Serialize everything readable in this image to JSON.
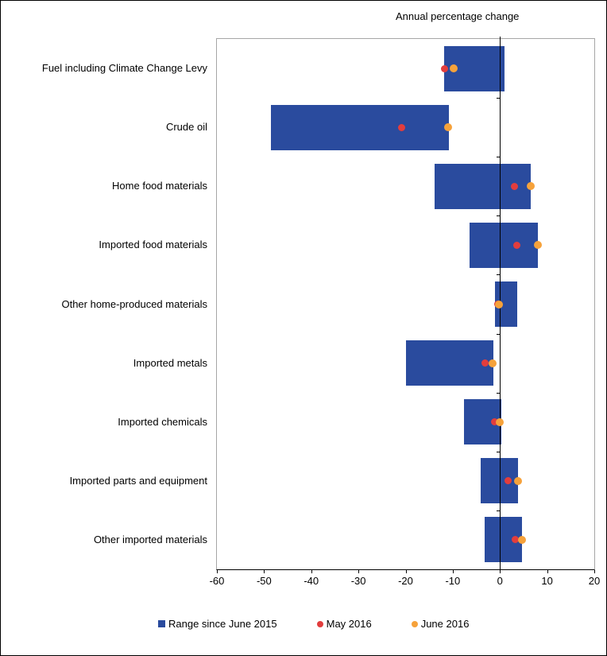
{
  "title": "Annual percentage change",
  "colors": {
    "range_bar": "#2a4b9e",
    "may_point": "#e23d3d",
    "june_point": "#f6a23b",
    "plot_border": "#a6a6a6",
    "axis_line": "#000000"
  },
  "legend": {
    "items": [
      {
        "label": "Range since June 2015",
        "marker": "square",
        "color": "#2a4b9e"
      },
      {
        "label": "May 2016",
        "marker": "circle",
        "color": "#e23d3d"
      },
      {
        "label": "June 2016",
        "marker": "circle",
        "color": "#f6a23b"
      }
    ]
  },
  "chart_data": {
    "type": "bar",
    "subtype": "horizontal-range-bars-with-points",
    "title": "Annual percentage change",
    "categories": [
      "Fuel including Climate Change Levy",
      "Crude oil",
      "Home food materials",
      "Imported food materials",
      "Other home-produced materials",
      "Imported metals",
      "Imported chemicals",
      "Imported parts and equipment",
      "Other imported materials"
    ],
    "series": [
      {
        "name": "Range since June 2015",
        "type": "range",
        "low": [
          -11.8,
          -48.5,
          -13.9,
          -6.4,
          -1.0,
          -19.9,
          -7.7,
          -4.1,
          -3.3
        ],
        "high": [
          1.0,
          -10.8,
          6.6,
          8.1,
          3.7,
          -1.4,
          0.3,
          3.8,
          4.6
        ]
      },
      {
        "name": "May 2016",
        "type": "point",
        "values": [
          -11.8,
          -20.8,
          3.0,
          3.5,
          -0.5,
          -3.1,
          -1.1,
          1.7,
          3.2
        ]
      },
      {
        "name": "June 2016",
        "type": "point",
        "values": [
          -9.8,
          -11.0,
          6.6,
          8.1,
          -0.2,
          -1.5,
          0.0,
          3.8,
          4.6
        ]
      }
    ],
    "xlabel": "",
    "xlim": [
      -60,
      20
    ],
    "xticks": [
      -60,
      -50,
      -40,
      -30,
      -20,
      -10,
      0,
      10,
      20
    ],
    "grid": false,
    "legend_position": "bottom"
  }
}
